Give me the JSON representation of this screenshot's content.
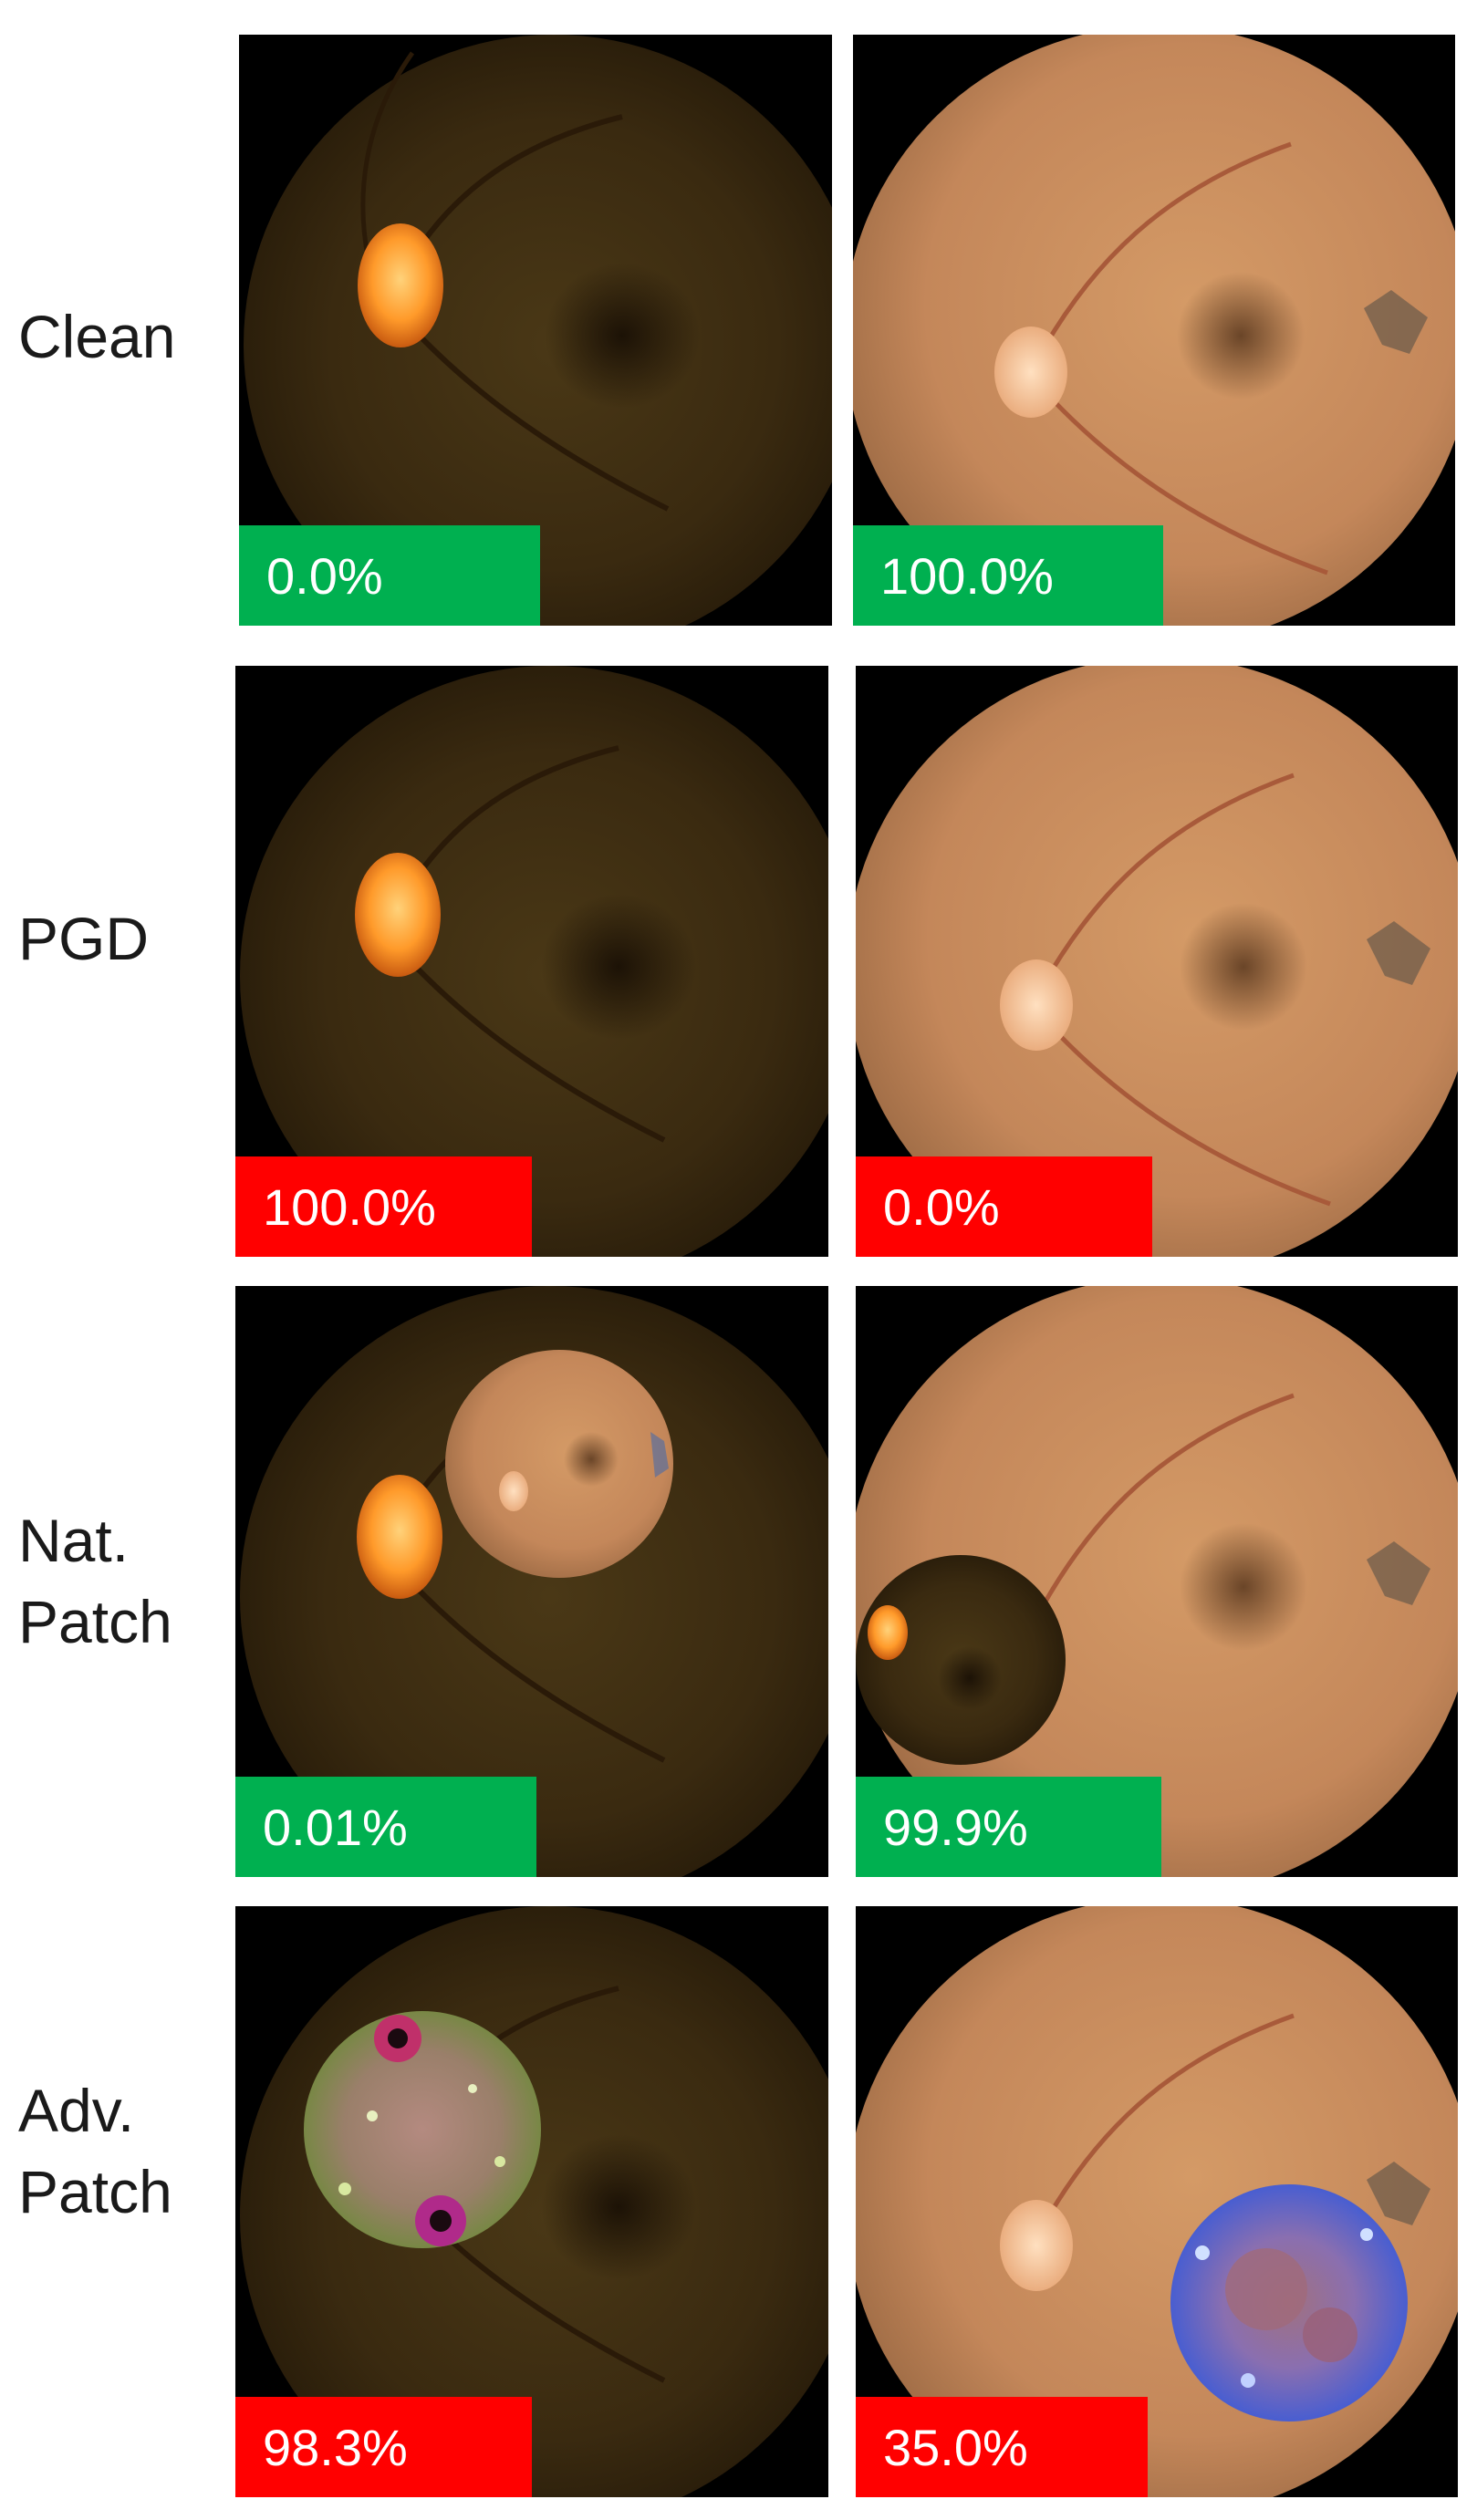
{
  "colors": {
    "success": "#00b050",
    "failure": "#ff0000",
    "dark_fundus": "#3a2a12",
    "bright_fundus": "#c48a5c"
  },
  "rows": [
    {
      "label": "Clean",
      "left": {
        "score": "0.0%",
        "status": "success"
      },
      "right": {
        "score": "100.0%",
        "status": "success"
      }
    },
    {
      "label": "PGD",
      "left": {
        "score": "100.0%",
        "status": "failure"
      },
      "right": {
        "score": "0.0%",
        "status": "failure"
      }
    },
    {
      "label": "Nat. Patch",
      "left": {
        "score": "0.01%",
        "status": "success"
      },
      "right": {
        "score": "99.9%",
        "status": "success"
      }
    },
    {
      "label": "Adv. Patch",
      "left": {
        "score": "98.3%",
        "status": "failure"
      },
      "right": {
        "score": "35.0%",
        "status": "failure"
      }
    }
  ]
}
